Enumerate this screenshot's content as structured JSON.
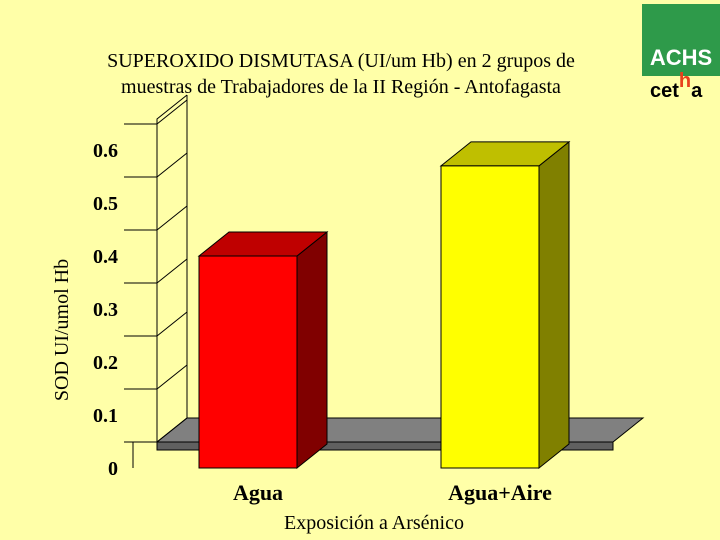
{
  "title": {
    "line1": "SUPEROXIDO DISMUTASA  (UI/um Hb) en 2 grupos de",
    "line2": "muestras de Trabajadores de la II Región - Antofagasta"
  },
  "logo": {
    "achs": "ACHS",
    "cetha_pre": "cet",
    "cetha_h": "h",
    "cetha_post": "a",
    "green": "#2E9A4A",
    "h_color": "#E8421C"
  },
  "chart_data": {
    "type": "bar",
    "categories": [
      "Agua",
      "Agua+Aire"
    ],
    "values": [
      0.4,
      0.57
    ],
    "colors": [
      "#FF0000",
      "#FFFF00"
    ],
    "xlabel": "Exposición a Arsénico",
    "ylabel": "SOD UI/umol Hb",
    "ylim": [
      0,
      0.6
    ],
    "yticks": [
      "0",
      "0.1",
      "0.2",
      "0.3",
      "0.4",
      "0.5",
      "0.6"
    ],
    "grid": false,
    "legend": "none",
    "background": "#FFFFA8"
  }
}
